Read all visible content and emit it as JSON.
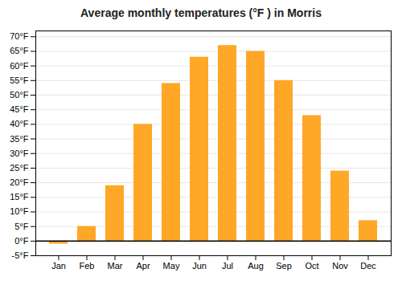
{
  "chart_data": {
    "type": "bar",
    "title": "Average monthly temperatures (°F ) in Morris",
    "categories": [
      "Jan",
      "Feb",
      "Mar",
      "Apr",
      "May",
      "Jun",
      "Jul",
      "Aug",
      "Sep",
      "Oct",
      "Nov",
      "Dec"
    ],
    "values": [
      -1,
      5,
      19,
      40,
      54,
      63,
      67,
      65,
      55,
      43,
      24,
      7
    ],
    "color": "#FFA726",
    "ylim": [
      -5,
      72
    ],
    "yticks": [
      {
        "value": -5,
        "label": "-5°F"
      },
      {
        "value": 0,
        "label": "0°F"
      },
      {
        "value": 5,
        "label": "5°F"
      },
      {
        "value": 10,
        "label": "10°F"
      },
      {
        "value": 15,
        "label": "15°F"
      },
      {
        "value": 20,
        "label": "20°F"
      },
      {
        "value": 25,
        "label": "25°F"
      },
      {
        "value": 30,
        "label": "30°F"
      },
      {
        "value": 35,
        "label": "35°F"
      },
      {
        "value": 40,
        "label": "40°F"
      },
      {
        "value": 45,
        "label": "45°F"
      },
      {
        "value": 50,
        "label": "50°F"
      },
      {
        "value": 55,
        "label": "55°F"
      },
      {
        "value": 60,
        "label": "60°F"
      },
      {
        "value": 65,
        "label": "65°F"
      },
      {
        "value": 70,
        "label": "70°F"
      }
    ],
    "grid": true
  }
}
